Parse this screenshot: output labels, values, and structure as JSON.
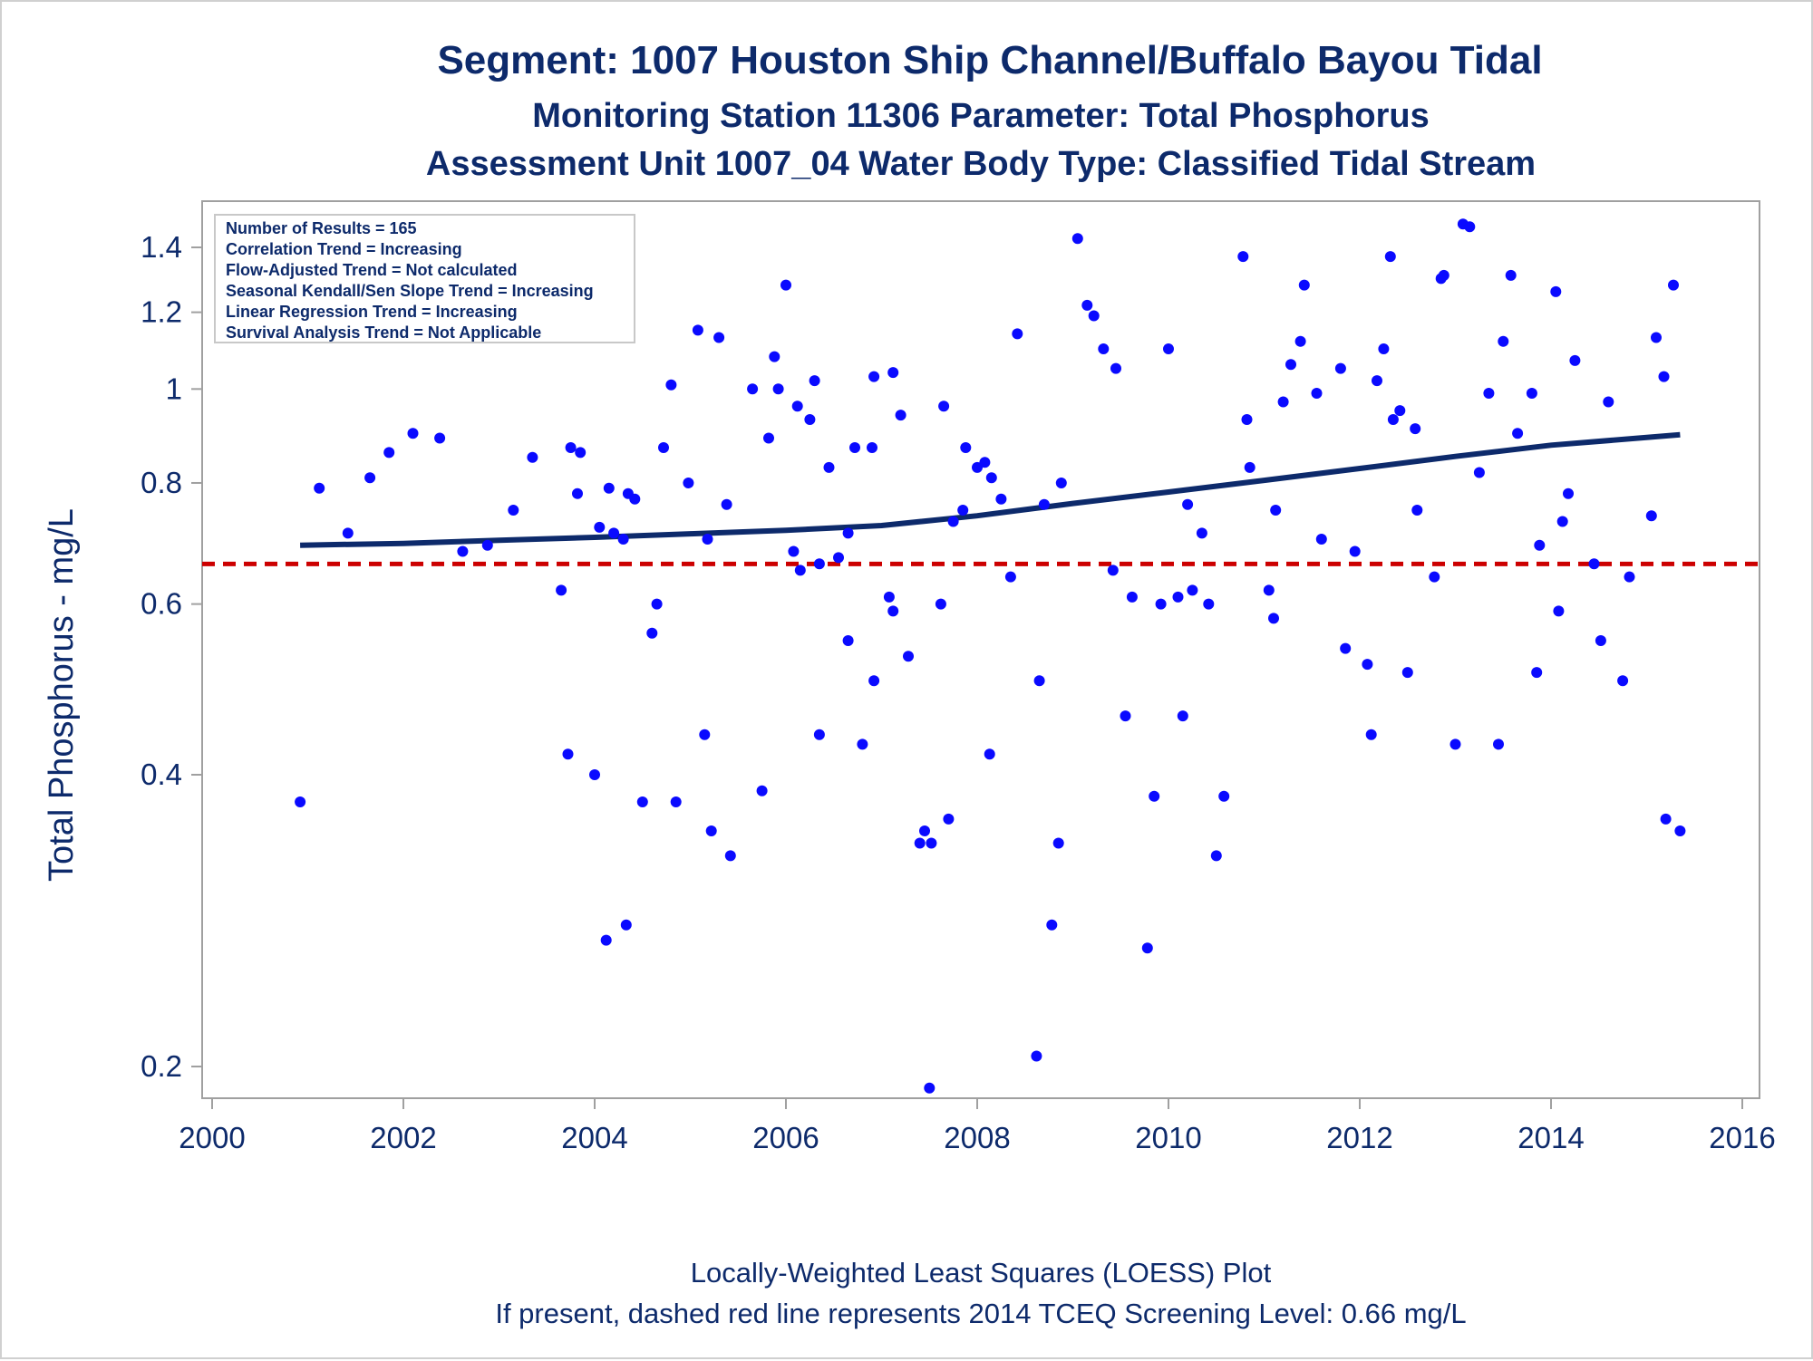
{
  "titles": {
    "line1": "Segment: 1007  Houston Ship Channel/Buffalo Bayou Tidal",
    "line2": "Monitoring Station 11306 Parameter: Total Phosphorus",
    "line3": "Assessment Unit 1007_04   Water Body Type: Classified Tidal Stream"
  },
  "stats": [
    "Number of Results = 165",
    "Correlation Trend = Increasing",
    "Flow-Adjusted Trend = Not calculated",
    "Seasonal Kendall/Sen Slope Trend = Increasing",
    "Linear Regression Trend = Increasing",
    "Survival Analysis Trend = Not Applicable"
  ],
  "footer": {
    "line1": "Locally-Weighted Least Squares (LOESS) Plot",
    "line2": "If present, dashed red line represents 2014 TCEQ Screening Level: 0.66 mg/L"
  },
  "colors": {
    "points": "#0a0aff",
    "loess": "#0d2a6b",
    "screening": "#cc0000",
    "text": "#0d2a6b",
    "frame": "#a0a0a0"
  },
  "chart_data": {
    "type": "scatter",
    "ylabel": "Total Phosphorus - mg/L",
    "xlabel": "",
    "yscale": "log",
    "xlim": [
      2000,
      2016
    ],
    "ylim": [
      0.19,
      1.52
    ],
    "x_ticks": [
      2000,
      2002,
      2004,
      2006,
      2008,
      2010,
      2012,
      2014,
      2016
    ],
    "x_tick_labels": [
      "2000",
      "2002",
      "2004",
      "2006",
      "2008",
      "2010",
      "2012",
      "2014",
      "2016"
    ],
    "y_ticks": [
      0.2,
      0.4,
      0.6,
      0.8,
      1.0,
      1.2,
      1.4
    ],
    "y_tick_labels": [
      "0.2",
      "0.4",
      "0.6",
      "0.8",
      "1",
      "1.2",
      "1.4"
    ],
    "screening_level": 0.66,
    "points": [
      [
        2000.92,
        0.375
      ],
      [
        2001.12,
        0.79
      ],
      [
        2001.42,
        0.71
      ],
      [
        2001.65,
        0.81
      ],
      [
        2001.85,
        0.86
      ],
      [
        2002.1,
        0.9
      ],
      [
        2002.38,
        0.89
      ],
      [
        2002.62,
        0.68
      ],
      [
        2002.88,
        0.69
      ],
      [
        2003.15,
        0.75
      ],
      [
        2003.35,
        0.85
      ],
      [
        2003.65,
        0.62
      ],
      [
        2003.72,
        0.42
      ],
      [
        2003.75,
        0.87
      ],
      [
        2003.82,
        0.78
      ],
      [
        2003.85,
        0.86
      ],
      [
        2004.0,
        0.4
      ],
      [
        2004.05,
        0.72
      ],
      [
        2004.12,
        0.27
      ],
      [
        2004.15,
        0.79
      ],
      [
        2004.2,
        0.71
      ],
      [
        2004.3,
        0.7
      ],
      [
        2004.33,
        0.28
      ],
      [
        2004.35,
        0.78
      ],
      [
        2004.42,
        0.77
      ],
      [
        2004.5,
        0.375
      ],
      [
        2004.6,
        0.56
      ],
      [
        2004.65,
        0.6
      ],
      [
        2004.72,
        0.87
      ],
      [
        2004.8,
        1.01
      ],
      [
        2004.85,
        0.375
      ],
      [
        2004.98,
        0.8
      ],
      [
        2005.08,
        1.15
      ],
      [
        2005.15,
        0.44
      ],
      [
        2005.18,
        0.7
      ],
      [
        2005.22,
        0.35
      ],
      [
        2005.3,
        1.13
      ],
      [
        2005.38,
        0.76
      ],
      [
        2005.42,
        0.33
      ],
      [
        2005.65,
        1.0
      ],
      [
        2005.75,
        0.385
      ],
      [
        2005.82,
        0.89
      ],
      [
        2005.88,
        1.08
      ],
      [
        2005.92,
        1.0
      ],
      [
        2006.0,
        1.28
      ],
      [
        2006.08,
        0.68
      ],
      [
        2006.12,
        0.96
      ],
      [
        2006.15,
        0.65
      ],
      [
        2006.25,
        0.93
      ],
      [
        2006.3,
        1.02
      ],
      [
        2006.35,
        0.44
      ],
      [
        2006.35,
        0.66
      ],
      [
        2006.45,
        0.83
      ],
      [
        2006.55,
        0.67
      ],
      [
        2006.65,
        0.55
      ],
      [
        2006.65,
        0.71
      ],
      [
        2006.72,
        0.87
      ],
      [
        2006.8,
        0.43
      ],
      [
        2006.9,
        0.87
      ],
      [
        2006.92,
        0.5
      ],
      [
        2006.92,
        1.03
      ],
      [
        2007.08,
        0.61
      ],
      [
        2007.12,
        0.59
      ],
      [
        2007.12,
        1.04
      ],
      [
        2007.2,
        0.94
      ],
      [
        2007.28,
        0.53
      ],
      [
        2007.4,
        0.34
      ],
      [
        2007.45,
        0.35
      ],
      [
        2007.52,
        0.34
      ],
      [
        2007.5,
        0.19
      ],
      [
        2007.62,
        0.6
      ],
      [
        2007.65,
        0.96
      ],
      [
        2007.7,
        0.36
      ],
      [
        2007.75,
        0.73
      ],
      [
        2007.85,
        0.75
      ],
      [
        2007.88,
        0.87
      ],
      [
        2008.0,
        0.83
      ],
      [
        2008.08,
        0.84
      ],
      [
        2008.13,
        0.42
      ],
      [
        2008.15,
        0.81
      ],
      [
        2008.25,
        0.77
      ],
      [
        2008.35,
        0.64
      ],
      [
        2008.42,
        1.14
      ],
      [
        2008.62,
        0.205
      ],
      [
        2008.65,
        0.5
      ],
      [
        2008.7,
        0.76
      ],
      [
        2008.78,
        0.28
      ],
      [
        2008.85,
        0.34
      ],
      [
        2008.88,
        0.8
      ],
      [
        2009.05,
        1.43
      ],
      [
        2009.15,
        1.22
      ],
      [
        2009.22,
        1.19
      ],
      [
        2009.32,
        1.1
      ],
      [
        2009.42,
        0.65
      ],
      [
        2009.45,
        1.05
      ],
      [
        2009.55,
        0.46
      ],
      [
        2009.62,
        0.61
      ],
      [
        2009.78,
        0.265
      ],
      [
        2009.85,
        0.38
      ],
      [
        2009.92,
        0.6
      ],
      [
        2010.0,
        1.1
      ],
      [
        2010.1,
        0.61
      ],
      [
        2010.15,
        0.46
      ],
      [
        2010.2,
        0.76
      ],
      [
        2010.25,
        0.62
      ],
      [
        2010.35,
        0.71
      ],
      [
        2010.42,
        0.6
      ],
      [
        2010.5,
        0.33
      ],
      [
        2010.58,
        0.38
      ],
      [
        2010.78,
        1.37
      ],
      [
        2010.82,
        0.93
      ],
      [
        2010.85,
        0.83
      ],
      [
        2011.05,
        0.62
      ],
      [
        2011.1,
        0.58
      ],
      [
        2011.12,
        0.75
      ],
      [
        2011.2,
        0.97
      ],
      [
        2011.28,
        1.06
      ],
      [
        2011.38,
        1.12
      ],
      [
        2011.42,
        1.28
      ],
      [
        2011.55,
        0.99
      ],
      [
        2011.6,
        0.7
      ],
      [
        2011.8,
        1.05
      ],
      [
        2011.85,
        0.54
      ],
      [
        2011.95,
        0.68
      ],
      [
        2012.08,
        0.52
      ],
      [
        2012.12,
        0.44
      ],
      [
        2012.18,
        1.02
      ],
      [
        2012.25,
        1.1
      ],
      [
        2012.32,
        1.37
      ],
      [
        2012.35,
        0.93
      ],
      [
        2012.42,
        0.95
      ],
      [
        2012.5,
        0.51
      ],
      [
        2012.58,
        0.91
      ],
      [
        2012.6,
        0.75
      ],
      [
        2012.78,
        0.64
      ],
      [
        2012.85,
        1.3
      ],
      [
        2012.88,
        1.31
      ],
      [
        2013.0,
        0.43
      ],
      [
        2013.08,
        1.48
      ],
      [
        2013.15,
        1.47
      ],
      [
        2013.25,
        0.82
      ],
      [
        2013.35,
        0.99
      ],
      [
        2013.45,
        0.43
      ],
      [
        2013.5,
        1.12
      ],
      [
        2013.58,
        1.31
      ],
      [
        2013.65,
        0.9
      ],
      [
        2013.8,
        0.99
      ],
      [
        2013.85,
        0.51
      ],
      [
        2013.88,
        0.69
      ],
      [
        2014.05,
        1.26
      ],
      [
        2014.08,
        0.59
      ],
      [
        2014.12,
        0.73
      ],
      [
        2014.18,
        0.78
      ],
      [
        2014.25,
        1.07
      ],
      [
        2014.45,
        0.66
      ],
      [
        2014.52,
        0.55
      ],
      [
        2014.6,
        0.97
      ],
      [
        2014.75,
        0.5
      ],
      [
        2014.82,
        0.64
      ],
      [
        2015.05,
        0.74
      ],
      [
        2015.1,
        1.13
      ],
      [
        2015.18,
        1.03
      ],
      [
        2015.2,
        0.36
      ],
      [
        2015.28,
        1.28
      ],
      [
        2015.35,
        0.35
      ]
    ],
    "loess": [
      [
        2000.92,
        0.69
      ],
      [
        2002.0,
        0.693
      ],
      [
        2003.0,
        0.698
      ],
      [
        2004.0,
        0.703
      ],
      [
        2005.0,
        0.709
      ],
      [
        2006.0,
        0.715
      ],
      [
        2007.0,
        0.723
      ],
      [
        2008.0,
        0.74
      ],
      [
        2009.0,
        0.762
      ],
      [
        2010.0,
        0.783
      ],
      [
        2011.0,
        0.805
      ],
      [
        2012.0,
        0.828
      ],
      [
        2013.0,
        0.852
      ],
      [
        2014.0,
        0.875
      ],
      [
        2015.35,
        0.897
      ]
    ]
  }
}
